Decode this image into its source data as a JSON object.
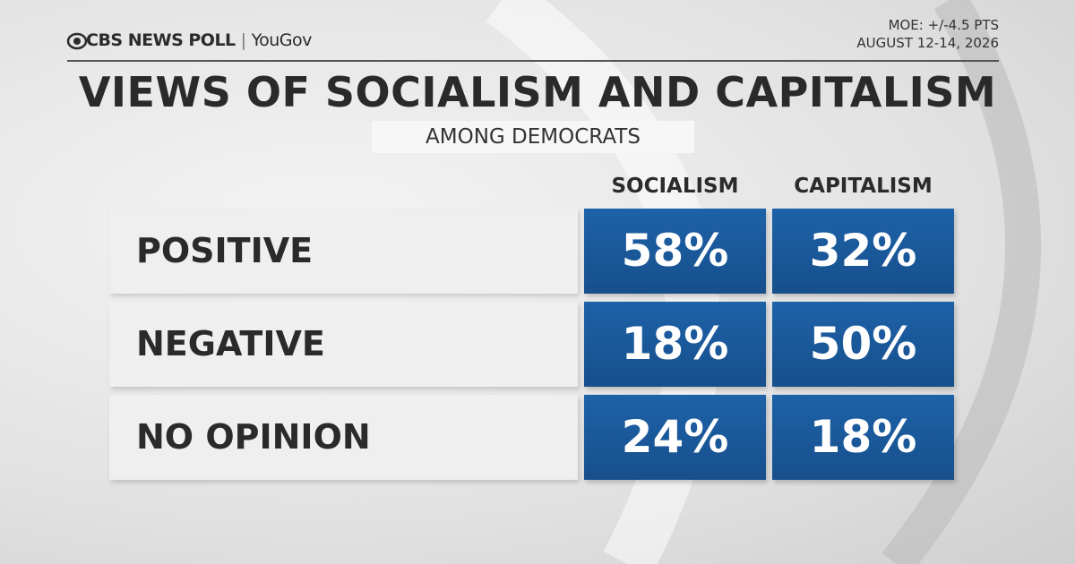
{
  "header": {
    "brand": "CBS NEWS POLL",
    "partner": "YouGov",
    "moe": "MOE: +/-4.5 PTS",
    "dates": "AUGUST 12-14, 2026"
  },
  "title": "VIEWS OF SOCIALISM AND CAPITALISM",
  "subtitle": "AMONG DEMOCRATS",
  "table": {
    "columns": [
      "SOCIALISM",
      "CAPITALISM"
    ],
    "rows": [
      [
        "POSITIVE",
        "58%",
        "32%"
      ],
      [
        "NEGATIVE",
        "18%",
        "50%"
      ],
      [
        "NO OPINION",
        "24%",
        "18%"
      ]
    ]
  }
}
